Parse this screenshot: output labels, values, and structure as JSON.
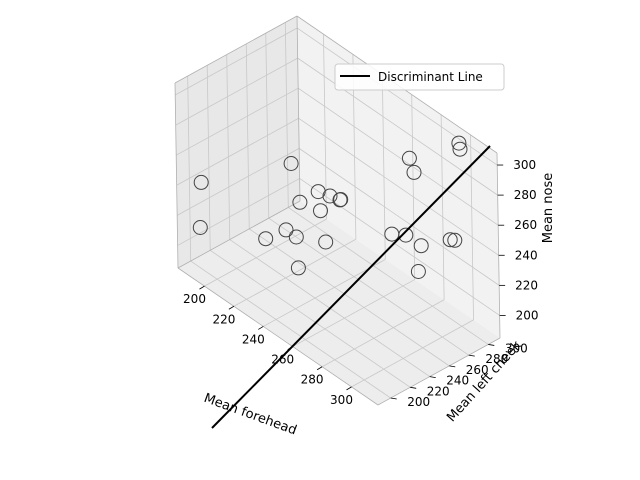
{
  "chart_data": {
    "type": "scatter",
    "projection": "3d",
    "xlabel": "Mean forehead",
    "ylabel": "Mean left cheek",
    "zlabel": "Mean nose",
    "xticks": [
      200,
      220,
      240,
      260,
      280,
      300
    ],
    "yticks": [
      200,
      220,
      240,
      260,
      280,
      300
    ],
    "zticks": [
      200,
      220,
      240,
      260,
      280,
      300
    ],
    "xlim": [
      182,
      318
    ],
    "ylim": [
      187,
      312
    ],
    "zlim": [
      185,
      308
    ],
    "grid": true,
    "legend": {
      "position": "upper right",
      "entries": [
        "Discriminant Line"
      ]
    },
    "line": {
      "name": "Discriminant Line",
      "color": "#000000"
    },
    "marker_color": "#444444",
    "points": [
      {
        "x": 189,
        "y": 200,
        "z": 212
      },
      {
        "x": 182,
        "y": 212,
        "z": 233
      },
      {
        "x": 225,
        "y": 213,
        "z": 224
      },
      {
        "x": 233,
        "y": 222,
        "z": 232
      },
      {
        "x": 240,
        "y": 222,
        "z": 232
      },
      {
        "x": 256,
        "y": 200,
        "z": 230
      },
      {
        "x": 250,
        "y": 237,
        "z": 230
      },
      {
        "x": 232,
        "y": 238,
        "z": 244
      },
      {
        "x": 242,
        "y": 244,
        "z": 243
      },
      {
        "x": 242,
        "y": 264,
        "z": 243
      },
      {
        "x": 223,
        "y": 243,
        "z": 262
      },
      {
        "x": 240,
        "y": 245,
        "z": 254
      },
      {
        "x": 246,
        "y": 248,
        "z": 254
      },
      {
        "x": 252,
        "y": 250,
        "z": 255
      },
      {
        "x": 284,
        "y": 254,
        "z": 252
      },
      {
        "x": 293,
        "y": 255,
        "z": 257
      },
      {
        "x": 296,
        "y": 266,
        "z": 248
      },
      {
        "x": 306,
        "y": 248,
        "z": 244
      },
      {
        "x": 309,
        "y": 281,
        "z": 255
      },
      {
        "x": 314,
        "y": 269,
        "z": 263
      },
      {
        "x": 276,
        "y": 285,
        "z": 286
      },
      {
        "x": 281,
        "y": 282,
        "z": 281
      },
      {
        "x": 296,
        "y": 306,
        "z": 302
      },
      {
        "x": 298,
        "y": 304,
        "z": 300
      }
    ]
  }
}
